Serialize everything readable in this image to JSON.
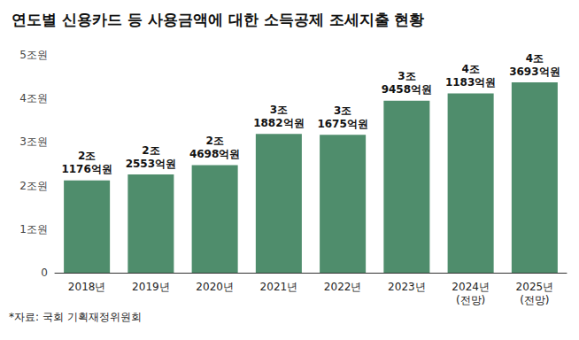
{
  "chart_data": {
    "type": "bar",
    "title": "연도별 신용카드 등 사용금액에 대한 소득공제 조세지출 현황",
    "note": "*자료: 국회 기획재정위원회",
    "categories": [
      "2018년",
      "2019년",
      "2020년",
      "2021년",
      "2022년",
      "2023년",
      "2024년\n(전망)",
      "2025년\n(전망)"
    ],
    "values": [
      2.1176,
      2.2553,
      2.4698,
      3.1882,
      3.1675,
      3.9458,
      4.1183,
      4.3693
    ],
    "value_labels": [
      "2조\n1176억원",
      "2조\n2553억원",
      "2조\n4698억원",
      "3조\n1882억원",
      "3조\n1675억원",
      "3조\n9458억원",
      "4조\n1183억원",
      "4조\n3693억원"
    ],
    "color": "#4f8d6c",
    "ylim": [
      0,
      5
    ],
    "yticks": [
      0,
      {
        "value": 1,
        "label": "1조원"
      },
      {
        "value": 2,
        "label": "2조원"
      },
      {
        "value": 3,
        "label": "3조원"
      },
      {
        "value": 4,
        "label": "4조원"
      },
      {
        "value": 5,
        "label": "5조원"
      }
    ],
    "grid": false,
    "data_labels": true
  }
}
